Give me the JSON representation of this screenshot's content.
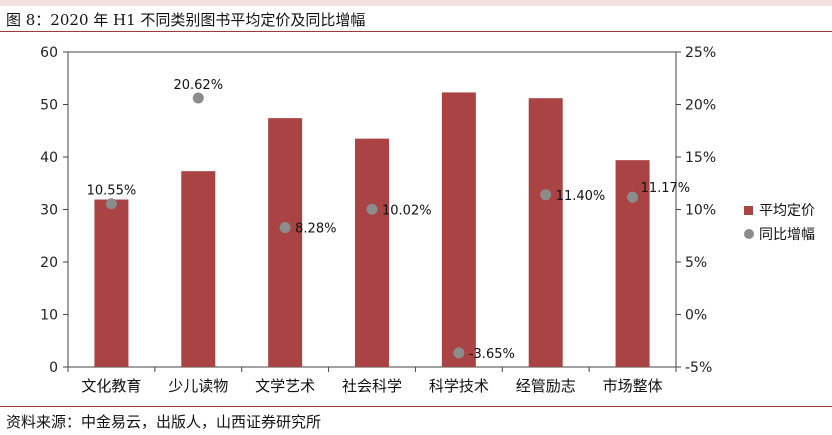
{
  "title": "图 8：2020 年 H1 不同类别图书平均定价及同比增幅",
  "source": "资料来源：中金易云，出版人，山西证券研究所",
  "colors": {
    "bar": "#aa4343",
    "dot": "#8c8c8c",
    "rule": "#a33a3a"
  },
  "chart_data": {
    "type": "bar",
    "categories": [
      "文化教育",
      "少儿读物",
      "文学艺术",
      "社会科学",
      "科学技术",
      "经管励志",
      "市场整体"
    ],
    "series": [
      {
        "name": "平均定价",
        "type": "bar",
        "axis": "left",
        "values": [
          31.9,
          37.3,
          47.4,
          43.5,
          52.3,
          51.2,
          39.4
        ]
      },
      {
        "name": "同比增幅",
        "type": "scatter",
        "axis": "right",
        "values": [
          10.55,
          20.62,
          8.28,
          10.02,
          -3.65,
          11.4,
          11.17
        ],
        "labels": [
          "10.55%",
          "20.62%",
          "8.28%",
          "10.02%",
          "-3.65%",
          "11.40%",
          "11.17%"
        ]
      }
    ],
    "y_left": {
      "min": 0,
      "max": 60,
      "ticks": [
        "0",
        "10",
        "20",
        "30",
        "40",
        "50",
        "60"
      ]
    },
    "y_right": {
      "min": -5,
      "max": 25,
      "ticks": [
        "-5%",
        "0%",
        "5%",
        "10%",
        "15%",
        "20%",
        "25%"
      ]
    },
    "legend": "right",
    "grid": false
  }
}
